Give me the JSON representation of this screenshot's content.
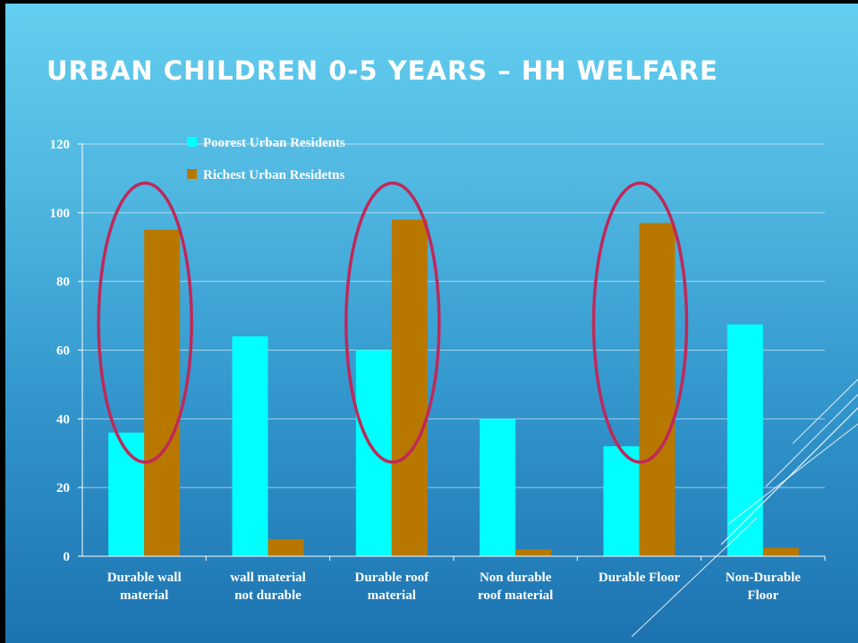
{
  "slide": {
    "title": "URBAN CHILDREN 0-5 YEARS – HH WELFARE"
  },
  "chart_data": {
    "type": "bar",
    "categories": [
      [
        "Durable wall",
        "material"
      ],
      [
        "wall material",
        "not durable"
      ],
      [
        "Durable roof",
        "material"
      ],
      [
        "Non durable",
        "roof material"
      ],
      [
        "Durable Floor"
      ],
      [
        "Non-Durable",
        "Floor"
      ]
    ],
    "series": [
      {
        "name": "Poorest Urban Residents",
        "color": "#00ffff",
        "values": [
          36,
          64,
          60,
          40,
          32,
          67.5
        ]
      },
      {
        "name": "Richest Urban Residetns",
        "color": "#b87800",
        "values": [
          95,
          5,
          98,
          2,
          97,
          2.5
        ]
      }
    ],
    "ylim": [
      0,
      120
    ],
    "yticks": [
      0,
      20,
      40,
      60,
      80,
      100,
      120
    ],
    "grid": true,
    "legend": "top-left",
    "highlight_circles": {
      "color": "#c0285a",
      "categories": [
        0,
        2,
        4
      ]
    },
    "xlabel": "",
    "ylabel": ""
  }
}
